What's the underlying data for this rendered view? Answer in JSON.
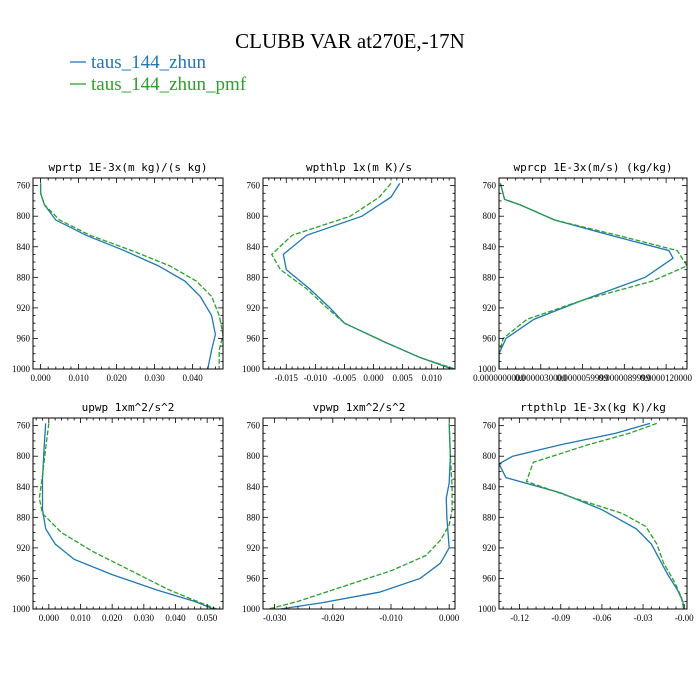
{
  "figure": {
    "title": "CLUBB VAR at270E,-17N",
    "legend": [
      {
        "label": "taus_144_zhun",
        "color": "#1f77b4",
        "dash": "solid"
      },
      {
        "label": "taus_144_zhun_pmf",
        "color": "#2ca02c",
        "dash": "dashed"
      }
    ]
  },
  "chart_data": [
    {
      "type": "line",
      "title": "wprtp  1E-3x(m kg)/(s kg)",
      "xlim": [
        -0.002,
        0.048
      ],
      "ylim": [
        1000,
        750
      ],
      "xticks": [
        0.0,
        0.01,
        0.02,
        0.03,
        0.04
      ],
      "xtick_labels": [
        "0.000",
        "0.010",
        "0.020",
        "0.030",
        "0.040"
      ],
      "yticks": [
        760,
        800,
        840,
        880,
        920,
        960,
        1000
      ],
      "series": [
        {
          "name": "taus_144_zhun",
          "color": "#1f77b4",
          "dash": "solid",
          "points": [
            [
              0.0,
              757
            ],
            [
              0.0,
              770
            ],
            [
              0.001,
              785
            ],
            [
              0.004,
              805
            ],
            [
              0.012,
              825
            ],
            [
              0.022,
              845
            ],
            [
              0.031,
              865
            ],
            [
              0.038,
              885
            ],
            [
              0.042,
              905
            ],
            [
              0.045,
              930
            ],
            [
              0.046,
              955
            ],
            [
              0.045,
              975
            ],
            [
              0.044,
              1000
            ]
          ]
        },
        {
          "name": "taus_144_zhun_pmf",
          "color": "#2ca02c",
          "dash": "dashed",
          "points": [
            [
              0.0,
              757
            ],
            [
              0.0,
              770
            ],
            [
              0.001,
              785
            ],
            [
              0.005,
              805
            ],
            [
              0.013,
              825
            ],
            [
              0.024,
              845
            ],
            [
              0.034,
              865
            ],
            [
              0.041,
              885
            ],
            [
              0.045,
              905
            ],
            [
              0.047,
              930
            ],
            [
              0.048,
              955
            ],
            [
              0.047,
              975
            ],
            [
              0.047,
              1000
            ]
          ]
        }
      ]
    },
    {
      "type": "line",
      "title": "wpthlp  1x(m K)/s",
      "xlim": [
        -0.019,
        0.014
      ],
      "ylim": [
        1000,
        750
      ],
      "xticks": [
        -0.015,
        -0.01,
        -0.005,
        0.0,
        0.005,
        0.01
      ],
      "xtick_labels": [
        "-0.015",
        "-0.010",
        "-0.005",
        "0.000",
        "0.005",
        "0.010"
      ],
      "yticks": [
        760,
        800,
        840,
        880,
        920,
        960,
        1000
      ],
      "series": [
        {
          "name": "taus_144_zhun",
          "color": "#1f77b4",
          "dash": "solid",
          "points": [
            [
              0.0045,
              757
            ],
            [
              0.003,
              775
            ],
            [
              -0.002,
              800
            ],
            [
              -0.0115,
              825
            ],
            [
              -0.0155,
              850
            ],
            [
              -0.015,
              870
            ],
            [
              -0.011,
              895
            ],
            [
              -0.0075,
              920
            ],
            [
              -0.005,
              940
            ],
            [
              0.002,
              965
            ],
            [
              0.008,
              985
            ],
            [
              0.0135,
              1000
            ]
          ]
        },
        {
          "name": "taus_144_zhun_pmf",
          "color": "#2ca02c",
          "dash": "dashed",
          "points": [
            [
              0.003,
              757
            ],
            [
              0.001,
              775
            ],
            [
              -0.004,
              800
            ],
            [
              -0.014,
              825
            ],
            [
              -0.0175,
              850
            ],
            [
              -0.016,
              870
            ],
            [
              -0.0115,
              895
            ],
            [
              -0.008,
              920
            ],
            [
              -0.005,
              940
            ],
            [
              0.002,
              965
            ],
            [
              0.008,
              985
            ],
            [
              0.014,
              1000
            ]
          ]
        }
      ]
    },
    {
      "type": "line",
      "title": "wprcp  1E-3x(m/s) (kg/kg)",
      "xlim": [
        0.0,
        1.35e-05
      ],
      "ylim": [
        1000,
        750
      ],
      "xticks": [
        0.0,
        3e-06,
        6e-06,
        9e-06,
        1.2e-05
      ],
      "xtick_labels": [
        "0.0000000000",
        "0.0000030000",
        "0.0000059999",
        "0.0000089999",
        "0.0000120000"
      ],
      "yticks": [
        760,
        800,
        840,
        880,
        920,
        960,
        1000
      ],
      "series": [
        {
          "name": "taus_144_zhun",
          "color": "#1f77b4",
          "dash": "solid",
          "points": [
            [
              1e-07,
              757
            ],
            [
              4e-07,
              778
            ],
            [
              1.5e-06,
              785
            ],
            [
              4e-06,
              805
            ],
            [
              8e-06,
              825
            ],
            [
              1.22e-05,
              845
            ],
            [
              1.25e-05,
              855
            ],
            [
              1.05e-05,
              880
            ],
            [
              6e-06,
              910
            ],
            [
              2.5e-06,
              935
            ],
            [
              5e-07,
              960
            ],
            [
              0.0,
              980
            ],
            [
              0.0,
              1000
            ]
          ]
        },
        {
          "name": "taus_144_zhun_pmf",
          "color": "#2ca02c",
          "dash": "dashed",
          "points": [
            [
              1e-07,
              757
            ],
            [
              4e-07,
              778
            ],
            [
              1.5e-06,
              785
            ],
            [
              4e-06,
              805
            ],
            [
              8.5e-06,
              825
            ],
            [
              1.28e-05,
              845
            ],
            [
              1.35e-05,
              865
            ],
            [
              1.1e-05,
              885
            ],
            [
              6e-06,
              910
            ],
            [
              2e-06,
              935
            ],
            [
              3e-07,
              960
            ],
            [
              0.0,
              980
            ],
            [
              0.0,
              1000
            ]
          ]
        }
      ]
    },
    {
      "type": "line",
      "title": "upwp  1xm^2/s^2",
      "xlim": [
        -0.005,
        0.055
      ],
      "ylim": [
        1000,
        750
      ],
      "xticks": [
        0.0,
        0.01,
        0.02,
        0.03,
        0.04,
        0.05
      ],
      "xtick_labels": [
        "0.000",
        "0.010",
        "0.020",
        "0.030",
        "0.040",
        "0.050"
      ],
      "yticks": [
        760,
        800,
        840,
        880,
        920,
        960,
        1000
      ],
      "series": [
        {
          "name": "taus_144_zhun",
          "color": "#1f77b4",
          "dash": "solid",
          "points": [
            [
              -0.001,
              757
            ],
            [
              -0.0015,
              790
            ],
            [
              -0.002,
              830
            ],
            [
              -0.002,
              870
            ],
            [
              -0.001,
              895
            ],
            [
              0.002,
              915
            ],
            [
              0.008,
              935
            ],
            [
              0.02,
              955
            ],
            [
              0.034,
              975
            ],
            [
              0.046,
              990
            ],
            [
              0.052,
              1000
            ]
          ]
        },
        {
          "name": "taus_144_zhun_pmf",
          "color": "#2ca02c",
          "dash": "dashed",
          "points": [
            [
              0.0,
              757
            ],
            [
              -0.001,
              790
            ],
            [
              -0.002,
              825
            ],
            [
              -0.003,
              855
            ],
            [
              -0.002,
              875
            ],
            [
              0.004,
              900
            ],
            [
              0.014,
              925
            ],
            [
              0.026,
              950
            ],
            [
              0.038,
              975
            ],
            [
              0.048,
              992
            ],
            [
              0.053,
              1000
            ]
          ]
        }
      ]
    },
    {
      "type": "line",
      "title": "vpwp  1xm^2/s^2",
      "xlim": [
        -0.032,
        0.001
      ],
      "ylim": [
        1000,
        750
      ],
      "xticks": [
        -0.03,
        -0.02,
        -0.01,
        0.0
      ],
      "xtick_labels": [
        "-0.030",
        "-0.020",
        "-0.010",
        "0.000"
      ],
      "yticks": [
        760,
        800,
        840,
        880,
        920,
        960,
        1000
      ],
      "series": [
        {
          "name": "taus_144_zhun",
          "color": "#1f77b4",
          "dash": "solid",
          "points": [
            [
              0.0,
              757
            ],
            [
              0.0002,
              800
            ],
            [
              0.0,
              835
            ],
            [
              -0.0005,
              855
            ],
            [
              -0.0004,
              880
            ],
            [
              0.0,
              920
            ],
            [
              -0.0015,
              940
            ],
            [
              -0.005,
              960
            ],
            [
              -0.012,
              978
            ],
            [
              -0.022,
              992
            ],
            [
              -0.029,
              1000
            ]
          ]
        },
        {
          "name": "taus_144_zhun_pmf",
          "color": "#2ca02c",
          "dash": "dashed",
          "points": [
            [
              0.0,
              757
            ],
            [
              0.0002,
              800
            ],
            [
              0.0005,
              840
            ],
            [
              0.0005,
              870
            ],
            [
              0.0,
              890
            ],
            [
              -0.0015,
              910
            ],
            [
              -0.004,
              930
            ],
            [
              -0.01,
              950
            ],
            [
              -0.018,
              970
            ],
            [
              -0.026,
              990
            ],
            [
              -0.031,
              1000
            ]
          ]
        }
      ]
    },
    {
      "type": "line",
      "title": "rtpthlp  1E-3x(kg K)/kg",
      "xlim": [
        -0.135,
        0.002
      ],
      "ylim": [
        1000,
        750
      ],
      "xticks": [
        -0.12,
        -0.09,
        -0.06,
        -0.03,
        0.0
      ],
      "xtick_labels": [
        "-0.12",
        "-0.09",
        "-0.06",
        "-0.03",
        "-0.00"
      ],
      "yticks": [
        760,
        800,
        840,
        880,
        920,
        960,
        1000
      ],
      "series": [
        {
          "name": "taus_144_zhun",
          "color": "#1f77b4",
          "dash": "solid",
          "points": [
            [
              -0.025,
              757
            ],
            [
              -0.05,
              770
            ],
            [
              -0.09,
              785
            ],
            [
              -0.125,
              800
            ],
            [
              -0.135,
              810
            ],
            [
              -0.13,
              828
            ],
            [
              -0.09,
              848
            ],
            [
              -0.06,
              870
            ],
            [
              -0.035,
              895
            ],
            [
              -0.024,
              915
            ],
            [
              -0.018,
              935
            ],
            [
              -0.012,
              955
            ],
            [
              -0.005,
              975
            ],
            [
              -0.001,
              990
            ],
            [
              -0.0005,
              1000
            ]
          ]
        },
        {
          "name": "taus_144_zhun_pmf",
          "color": "#2ca02c",
          "dash": "dashed",
          "points": [
            [
              -0.02,
              757
            ],
            [
              -0.04,
              770
            ],
            [
              -0.07,
              785
            ],
            [
              -0.11,
              808
            ],
            [
              -0.115,
              833
            ],
            [
              -0.08,
              855
            ],
            [
              -0.045,
              875
            ],
            [
              -0.028,
              892
            ],
            [
              -0.02,
              915
            ],
            [
              -0.015,
              940
            ],
            [
              -0.007,
              965
            ],
            [
              -0.002,
              985
            ],
            [
              -0.0005,
              1000
            ]
          ]
        }
      ]
    }
  ]
}
